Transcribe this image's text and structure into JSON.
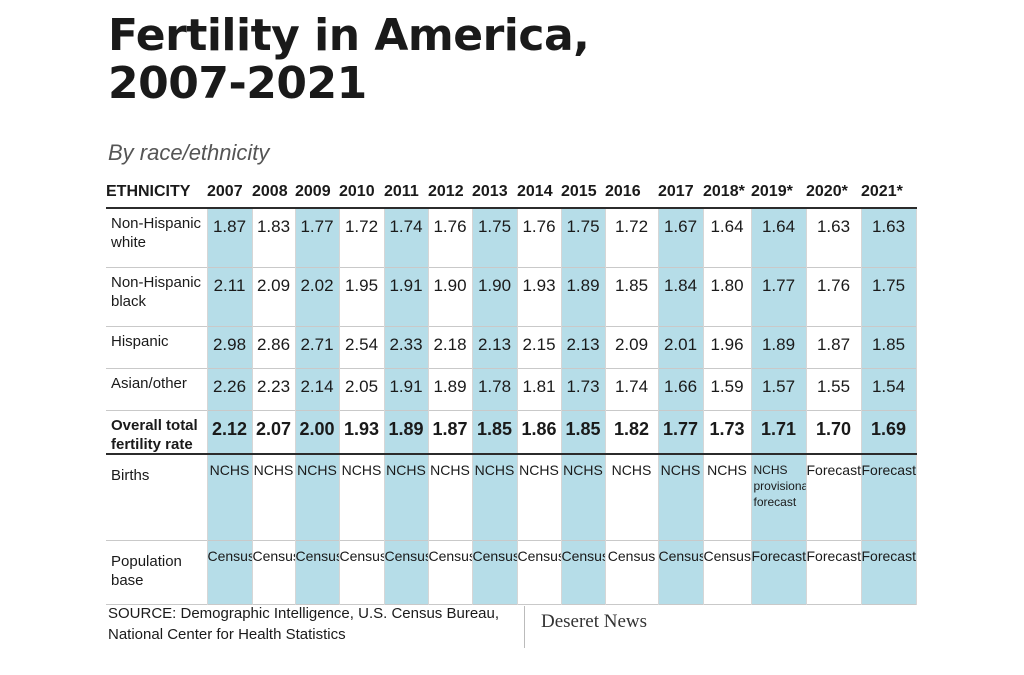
{
  "title_lines": [
    "Fertility in America,",
    "2007-2021"
  ],
  "subtitle": "By race/ethnicity",
  "chart_data": {
    "type": "table",
    "header_label": "ETHNICITY",
    "years": [
      "2007",
      "2008",
      "2009",
      "2010",
      "2011",
      "2012",
      "2013",
      "2014",
      "2015",
      "2016",
      "2017",
      "2018*",
      "2019*",
      "2020*",
      "2021*"
    ],
    "rows": [
      {
        "label_lines": [
          "Non-Hispanic",
          "white"
        ],
        "values": [
          "1.87",
          "1.83",
          "1.77",
          "1.72",
          "1.74",
          "1.76",
          "1.75",
          "1.76",
          "1.75",
          "1.72",
          "1.67",
          "1.64",
          "1.64",
          "1.63",
          "1.63"
        ]
      },
      {
        "label_lines": [
          "Non-Hispanic",
          "black"
        ],
        "values": [
          "2.11",
          "2.09",
          "2.02",
          "1.95",
          "1.91",
          "1.90",
          "1.90",
          "1.93",
          "1.89",
          "1.85",
          "1.84",
          "1.80",
          "1.77",
          "1.76",
          "1.75"
        ]
      },
      {
        "label_lines": [
          "Hispanic"
        ],
        "values": [
          "2.98",
          "2.86",
          "2.71",
          "2.54",
          "2.33",
          "2.18",
          "2.13",
          "2.15",
          "2.13",
          "2.09",
          "2.01",
          "1.96",
          "1.89",
          "1.87",
          "1.85"
        ]
      },
      {
        "label_lines": [
          "Asian/other"
        ],
        "values": [
          "2.26",
          "2.23",
          "2.14",
          "2.05",
          "1.91",
          "1.89",
          "1.78",
          "1.81",
          "1.73",
          "1.74",
          "1.66",
          "1.59",
          "1.57",
          "1.55",
          "1.54"
        ]
      },
      {
        "label_lines": [
          "Overall total",
          "fertility rate"
        ],
        "values": [
          "2.12",
          "2.07",
          "2.00",
          "1.93",
          "1.89",
          "1.87",
          "1.85",
          "1.86",
          "1.85",
          "1.82",
          "1.77",
          "1.73",
          "1.71",
          "1.70",
          "1.69"
        ],
        "bold": true
      }
    ],
    "source_rows": [
      {
        "label_lines": [
          "Births"
        ],
        "values": [
          "NCHS",
          "NCHS",
          "NCHS",
          "NCHS",
          "NCHS",
          "NCHS",
          "NCHS",
          "NCHS",
          "NCHS",
          "NCHS",
          "NCHS",
          "NCHS",
          "NCHS provisional/ forecast",
          "Forecast",
          "Forecast"
        ]
      },
      {
        "label_lines": [
          "Population",
          "base"
        ],
        "values": [
          "Census",
          "Census",
          "Census",
          "Census",
          "Census",
          "Census",
          "Census",
          "Census",
          "Census",
          "Census",
          "Census",
          "Census",
          "Forecast",
          "Forecast",
          "Forecast"
        ]
      }
    ],
    "shaded_columns": [
      "2007",
      "2009",
      "2011",
      "2013",
      "2015",
      "2017",
      "2019*",
      "2021*"
    ],
    "shade_color": "#b6dde8"
  },
  "source_lines": [
    "SOURCE: Demographic Intelligence, U.S. Census Bureau,",
    "National Center for Health Statistics"
  ],
  "brand": "Deseret News"
}
